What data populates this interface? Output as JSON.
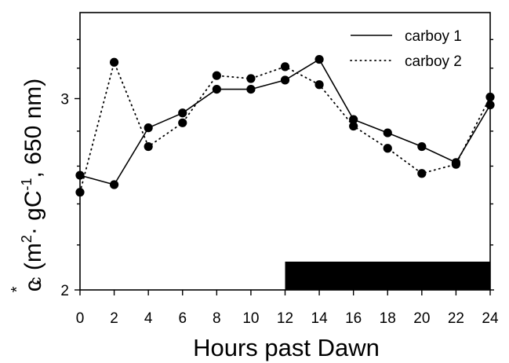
{
  "chart_data": {
    "type": "line",
    "x": [
      0,
      2,
      4,
      6,
      8,
      10,
      12,
      14,
      16,
      18,
      20,
      22,
      24
    ],
    "series": [
      {
        "name": "carboy 1",
        "style": "solid",
        "values": [
          2.55,
          2.5,
          2.82,
          2.91,
          3.06,
          3.06,
          3.12,
          3.26,
          2.87,
          2.79,
          2.71,
          2.62,
          2.96
        ]
      },
      {
        "name": "carboy 2",
        "style": "dotted",
        "values": [
          2.46,
          3.24,
          2.71,
          2.85,
          3.15,
          3.13,
          3.21,
          3.09,
          2.83,
          2.7,
          2.56,
          2.61,
          3.01
        ]
      }
    ],
    "xlabel": "Hours past Dawn",
    "ylabel": {
      "symbol": "c",
      "superscript": "*",
      "subscript": "c",
      "open_paren": " (m",
      "exp_2": "2",
      "middle": "· gC",
      "exp_neg1": "-1",
      "tail": ", 650 nm)"
    },
    "x_ticks": [
      "0",
      "2",
      "4",
      "6",
      "8",
      "10",
      "12",
      "14",
      "16",
      "18",
      "20",
      "22",
      "24"
    ],
    "y_ticks": [
      {
        "value": 2,
        "label": "2"
      },
      {
        "value": 3,
        "label": "3"
      }
    ],
    "y_log_scale": true,
    "ylim": [
      2,
      3.6
    ],
    "xlim": [
      0,
      24
    ],
    "dark_period": {
      "from": 12,
      "to": 24
    },
    "legend_position": "top-right",
    "grid": false,
    "colors": {
      "line": "#000000",
      "marker": "#000000",
      "bar": "#000000"
    }
  }
}
